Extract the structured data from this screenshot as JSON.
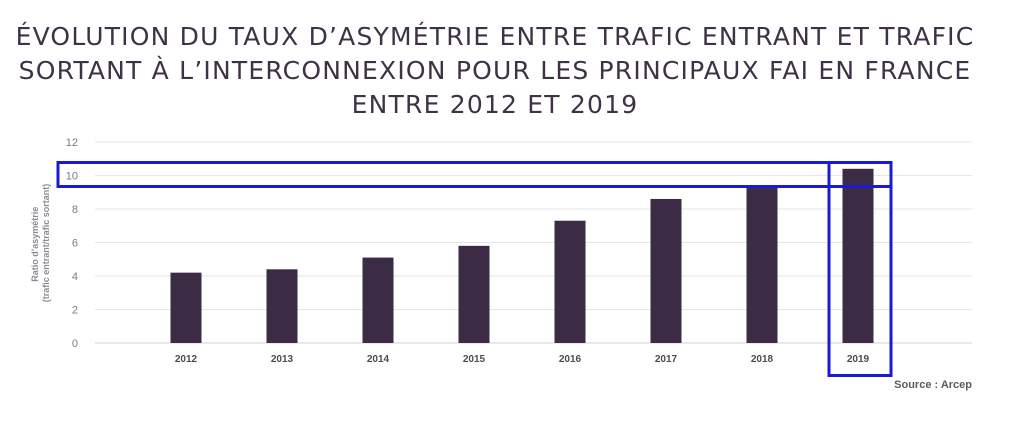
{
  "chart_data": {
    "type": "bar",
    "title_lines": [
      "ÉVOLUTION DU TAUX D’ASYMÉTRIE ENTRE TRAFIC ENTRANT ET TRAFIC",
      "SORTANT À L’INTERCONNEXION POUR LES PRINCIPAUX FAI EN FRANCE",
      "ENTRE 2012 ET 2019"
    ],
    "ylabel_lines": [
      "Ratio d’asymétrie",
      "(trafic entrant/trafic sortant)"
    ],
    "xlabel": "",
    "categories": [
      "2012",
      "2013",
      "2014",
      "2015",
      "2016",
      "2017",
      "2018",
      "2019"
    ],
    "values": [
      4.2,
      4.4,
      5.1,
      5.8,
      7.3,
      8.6,
      9.4,
      10.4
    ],
    "ylim": [
      0,
      12
    ],
    "yticks": [
      "0",
      "2",
      "4",
      "6",
      "8",
      "10",
      "12"
    ],
    "grid": true,
    "bar_color": "#3b2b45",
    "source": "Source : Arcep",
    "highlight": {
      "y_value": 10,
      "category": "2019",
      "color": "#1a1ad6"
    }
  }
}
